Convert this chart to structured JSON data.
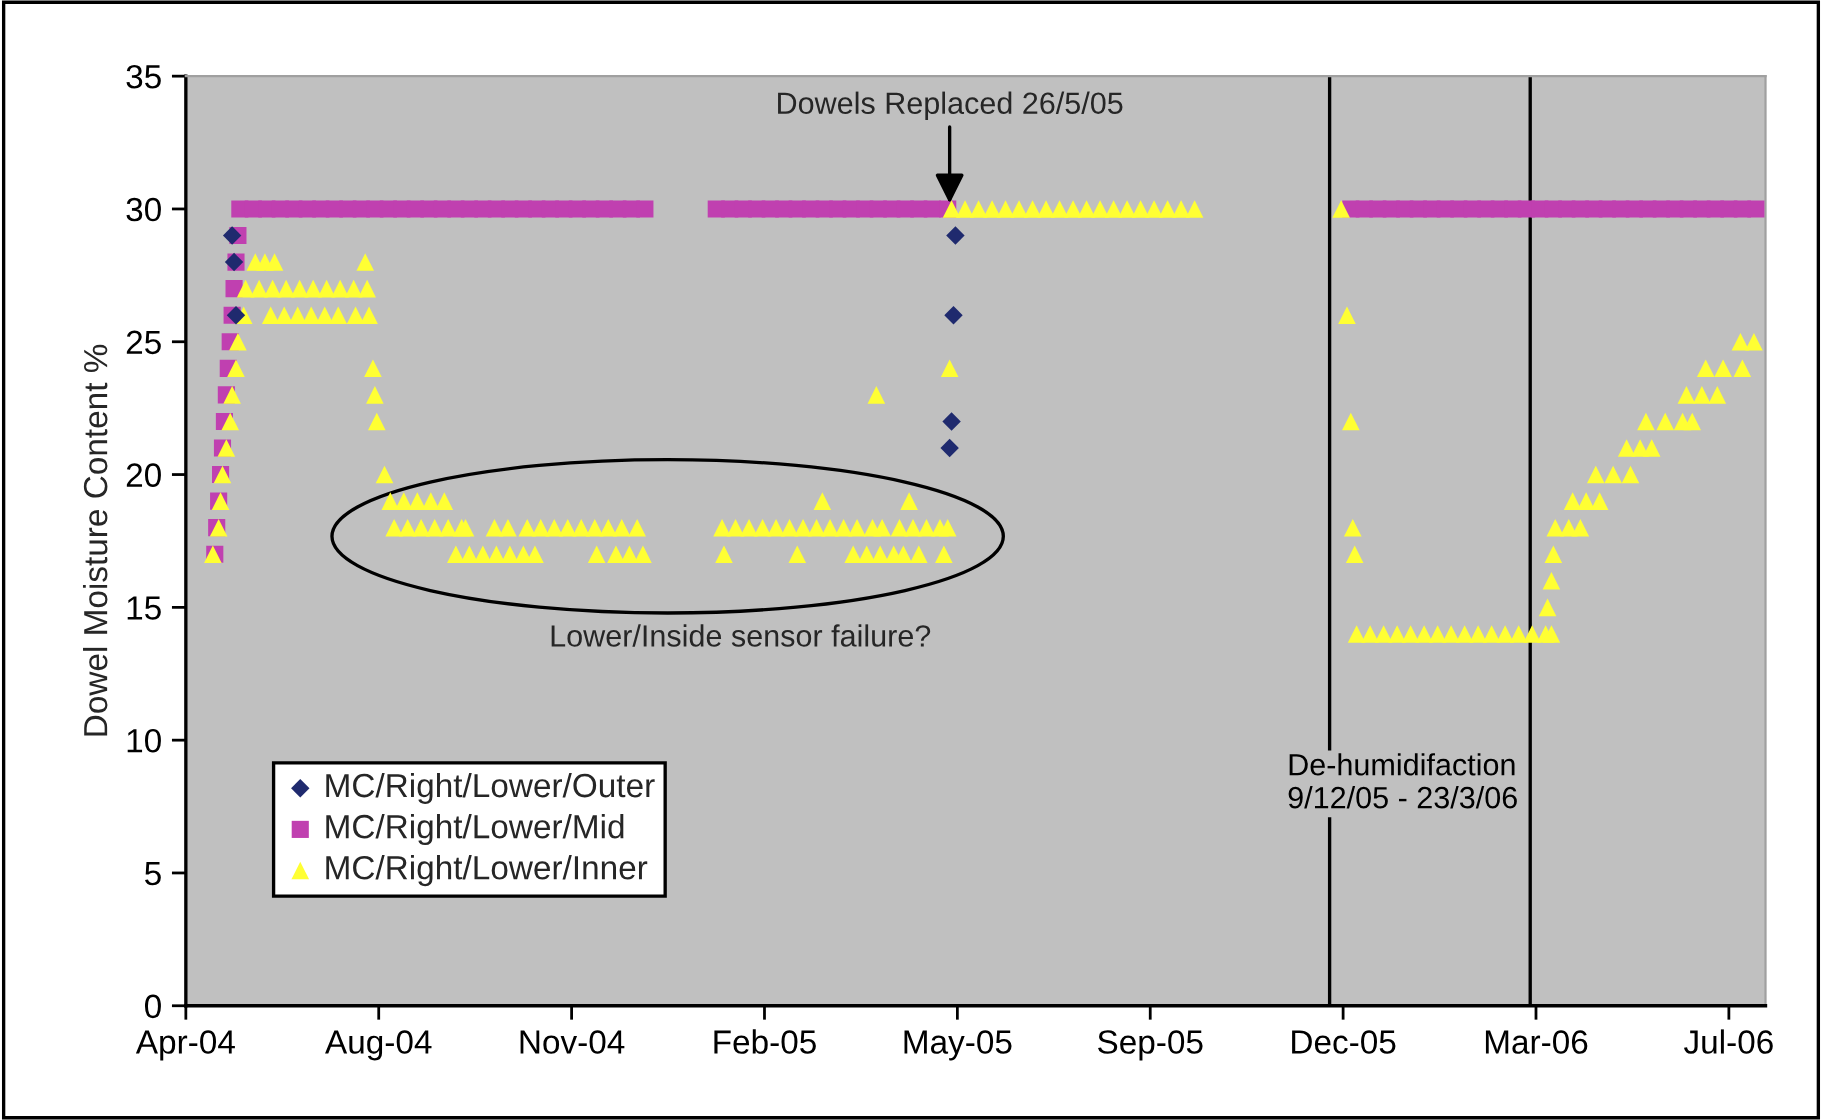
{
  "chart_data": {
    "type": "scatter",
    "ylabel": "Dowel Moisture Content %",
    "xlim": [
      "2004-04-25",
      "2006-07-23"
    ],
    "xticks": [
      {
        "value": "2004-04-25",
        "label": "Apr-04"
      },
      {
        "value": "2004-08-03",
        "label": "Aug-04"
      },
      {
        "value": "2004-11-11",
        "label": "Nov-04"
      },
      {
        "value": "2005-02-19",
        "label": "Feb-05"
      },
      {
        "value": "2005-05-30",
        "label": "May-05"
      },
      {
        "value": "2005-09-07",
        "label": "Sep-05"
      },
      {
        "value": "2005-12-16",
        "label": "Dec-05"
      },
      {
        "value": "2006-03-26",
        "label": "Mar-06"
      },
      {
        "value": "2006-07-04",
        "label": "Jul-06"
      }
    ],
    "ylim": [
      0,
      35
    ],
    "yticks": [
      0,
      5,
      10,
      15,
      20,
      25,
      30,
      35
    ],
    "grid": false,
    "legend": "bottom left",
    "series": [
      {
        "name": "MC/Right/Lower/Outer",
        "color": "#1f2a6e",
        "marker": "diamond",
        "x": [
          "2004-05-19",
          "2004-05-20",
          "2004-05-21",
          "2005-05-26",
          "2005-05-27",
          "2005-05-28",
          "2005-05-29"
        ],
        "values": [
          29,
          28,
          26,
          21,
          22,
          26,
          29
        ]
      },
      {
        "name": "MC/Right/Lower/Mid",
        "color": "#c040b0",
        "marker": "square",
        "x": [
          "2004-05-10",
          "2004-05-11",
          "2004-05-12",
          "2004-05-13",
          "2004-05-14",
          "2004-05-15",
          "2004-05-16",
          "2004-05-17",
          "2004-05-18",
          "2004-05-19",
          "2004-05-20",
          "2004-05-21",
          "2004-05-22",
          "2004-05-23",
          "2004-05-30",
          "2004-06-06",
          "2004-06-13",
          "2004-06-20",
          "2004-06-27",
          "2004-07-04",
          "2004-07-11",
          "2004-07-18",
          "2004-07-25",
          "2004-08-01",
          "2004-08-08",
          "2004-08-15",
          "2004-08-22",
          "2004-08-29",
          "2004-09-05",
          "2004-09-12",
          "2004-09-19",
          "2004-09-26",
          "2004-10-03",
          "2004-10-10",
          "2004-10-17",
          "2004-10-24",
          "2004-10-31",
          "2004-11-07",
          "2004-11-14",
          "2004-11-21",
          "2004-11-28",
          "2004-12-05",
          "2004-12-12",
          "2004-12-19",
          "2005-01-25",
          "2005-02-01",
          "2005-02-08",
          "2005-02-15",
          "2005-02-22",
          "2005-03-01",
          "2005-03-08",
          "2005-03-15",
          "2005-03-22",
          "2005-03-29",
          "2005-04-05",
          "2005-04-12",
          "2005-04-19",
          "2005-04-26",
          "2005-05-03",
          "2005-05-10",
          "2005-05-17",
          "2005-05-25",
          "2005-12-20",
          "2005-12-27",
          "2006-01-03",
          "2006-01-10",
          "2006-01-17",
          "2006-01-24",
          "2006-01-31",
          "2006-02-07",
          "2006-02-14",
          "2006-02-21",
          "2006-02-28",
          "2006-03-07",
          "2006-03-14",
          "2006-03-21",
          "2006-03-28",
          "2006-04-04",
          "2006-04-11",
          "2006-04-18",
          "2006-04-25",
          "2006-05-02",
          "2006-05-09",
          "2006-05-16",
          "2006-05-23",
          "2006-05-30",
          "2006-06-06",
          "2006-06-13",
          "2006-06-20",
          "2006-06-27",
          "2006-07-04",
          "2006-07-11",
          "2006-07-18"
        ],
        "values": [
          17,
          18,
          19,
          20,
          21,
          22,
          23,
          24,
          25,
          26,
          27,
          28,
          29,
          30,
          30,
          30,
          30,
          30,
          30,
          30,
          30,
          30,
          30,
          30,
          30,
          30,
          30,
          30,
          30,
          30,
          30,
          30,
          30,
          30,
          30,
          30,
          30,
          30,
          30,
          30,
          30,
          30,
          30,
          30,
          30,
          30,
          30,
          30,
          30,
          30,
          30,
          30,
          30,
          30,
          30,
          30,
          30,
          30,
          30,
          30,
          30,
          30,
          30,
          30,
          30,
          30,
          30,
          30,
          30,
          30,
          30,
          30,
          30,
          30,
          30,
          30,
          30,
          30,
          30,
          30,
          30,
          30,
          30,
          30,
          30,
          30,
          30,
          30,
          30,
          30,
          30,
          30,
          30
        ]
      },
      {
        "name": "MC/Right/Lower/Inner",
        "color": "#ffff33",
        "marker": "triangle",
        "x": [
          "2004-05-09",
          "2004-05-12",
          "2004-05-13",
          "2004-05-14",
          "2004-05-16",
          "2004-05-18",
          "2004-05-19",
          "2004-05-21",
          "2004-05-22",
          "2004-05-25",
          "2004-05-31",
          "2004-06-05",
          "2004-06-10",
          "2004-07-27",
          "2004-05-26",
          "2004-06-02",
          "2004-06-09",
          "2004-06-16",
          "2004-06-23",
          "2004-06-30",
          "2004-07-07",
          "2004-07-14",
          "2004-07-21",
          "2004-07-28",
          "2004-06-08",
          "2004-06-15",
          "2004-06-22",
          "2004-06-29",
          "2004-07-06",
          "2004-07-13",
          "2004-07-22",
          "2004-07-29",
          "2004-07-31",
          "2004-08-01",
          "2004-08-02",
          "2004-08-06",
          "2004-08-09",
          "2004-08-16",
          "2004-08-23",
          "2004-08-30",
          "2004-09-06",
          "2004-08-11",
          "2004-08-18",
          "2004-08-25",
          "2004-09-01",
          "2004-09-08",
          "2004-09-15",
          "2004-09-17",
          "2004-10-02",
          "2004-10-09",
          "2004-10-19",
          "2004-10-26",
          "2004-11-02",
          "2004-11-09",
          "2004-11-16",
          "2004-11-23",
          "2004-11-30",
          "2004-12-07",
          "2004-12-15",
          "2004-09-12",
          "2004-09-19",
          "2004-09-26",
          "2004-10-03",
          "2004-10-10",
          "2004-10-17",
          "2004-10-23",
          "2004-11-24",
          "2004-12-04",
          "2004-12-11",
          "2004-12-18",
          "2005-01-28",
          "2005-02-04",
          "2005-02-11",
          "2005-02-18",
          "2005-02-25",
          "2005-03-04",
          "2005-03-11",
          "2005-03-18",
          "2005-03-25",
          "2005-04-01",
          "2005-04-08",
          "2005-04-16",
          "2005-04-21",
          "2005-04-30",
          "2005-05-07",
          "2005-05-14",
          "2005-05-21",
          "2005-05-25",
          "2005-03-21",
          "2005-05-05",
          "2005-01-29",
          "2005-03-08",
          "2005-04-06",
          "2005-04-13",
          "2005-04-20",
          "2005-04-27",
          "2005-05-02",
          "2005-05-10",
          "2005-05-23",
          "2005-04-18",
          "2005-05-26",
          "2005-05-27",
          "2005-06-03",
          "2005-06-10",
          "2005-06-17",
          "2005-06-24",
          "2005-07-01",
          "2005-07-08",
          "2005-07-15",
          "2005-07-22",
          "2005-07-29",
          "2005-08-05",
          "2005-08-12",
          "2005-08-19",
          "2005-08-26",
          "2005-09-02",
          "2005-09-09",
          "2005-09-16",
          "2005-09-23",
          "2005-09-30",
          "2005-12-15",
          "2005-12-18",
          "2005-12-20",
          "2005-12-21",
          "2005-12-22",
          "2005-12-23",
          "2005-12-30",
          "2006-01-06",
          "2006-01-13",
          "2006-01-20",
          "2006-01-27",
          "2006-02-03",
          "2006-02-10",
          "2006-02-17",
          "2006-02-24",
          "2006-03-03",
          "2006-03-10",
          "2006-03-17",
          "2006-03-24",
          "2006-03-31",
          "2006-04-03",
          "2006-04-01",
          "2006-04-03",
          "2006-04-04",
          "2006-04-05",
          "2006-04-12",
          "2006-04-18",
          "2006-04-14",
          "2006-04-21",
          "2006-04-28",
          "2006-04-26",
          "2006-05-05",
          "2006-05-14",
          "2006-05-12",
          "2006-05-19",
          "2006-05-25",
          "2006-05-22",
          "2006-06-01",
          "2006-06-10",
          "2006-06-15",
          "2006-06-12",
          "2006-06-20",
          "2006-06-28",
          "2006-06-22",
          "2006-07-01",
          "2006-07-11",
          "2006-07-10",
          "2006-07-17"
        ],
        "values": [
          17,
          18,
          19,
          20,
          21,
          22,
          23,
          24,
          25,
          26,
          28,
          28,
          28,
          28,
          27,
          27,
          27,
          27,
          27,
          27,
          27,
          27,
          27,
          27,
          26,
          26,
          26,
          26,
          26,
          26,
          26,
          26,
          24,
          23,
          22,
          20,
          19,
          19,
          19,
          19,
          19,
          18,
          18,
          18,
          18,
          18,
          18,
          18,
          18,
          18,
          18,
          18,
          18,
          18,
          18,
          18,
          18,
          18,
          18,
          17,
          17,
          17,
          17,
          17,
          17,
          17,
          17,
          17,
          17,
          17,
          18,
          18,
          18,
          18,
          18,
          18,
          18,
          18,
          18,
          18,
          18,
          18,
          18,
          18,
          18,
          18,
          18,
          18,
          19,
          19,
          17,
          17,
          17,
          17,
          17,
          17,
          17,
          17,
          17,
          23,
          24,
          30,
          30,
          30,
          30,
          30,
          30,
          30,
          30,
          30,
          30,
          30,
          30,
          30,
          30,
          30,
          30,
          30,
          30,
          30,
          30,
          26,
          22,
          18,
          17,
          14,
          14,
          14,
          14,
          14,
          14,
          14,
          14,
          14,
          14,
          14,
          14,
          14,
          14,
          14,
          14,
          15,
          16,
          17,
          18,
          18,
          18,
          19,
          19,
          19,
          20,
          20,
          20,
          21,
          21,
          21,
          22,
          22,
          22,
          22,
          23,
          23,
          23,
          24,
          24,
          24,
          25,
          25
        ]
      }
    ],
    "ref_lines": [
      {
        "axis": "x",
        "value": "2005-12-09",
        "label": "De-humidifaction\n9/12/05 - 23/3/06",
        "color": "#000000"
      },
      {
        "axis": "x",
        "value": "2006-03-23",
        "color": "#000000"
      }
    ],
    "annotations": [
      {
        "text": "Dowels Replaced 26/5/05",
        "x": "2005-05-26",
        "y": 30
      },
      "Lower/Inside sensor failure?"
    ]
  }
}
